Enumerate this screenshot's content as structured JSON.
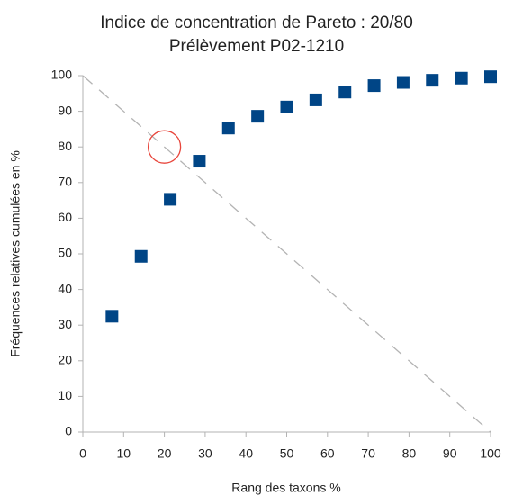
{
  "chart_data": {
    "type": "scatter",
    "title": "Indice de concentration de Pareto : 20/80",
    "subtitle": "Prélèvement P02-1210",
    "xlabel": "Rang des taxons %",
    "ylabel": "Fréquences relatives cumulées en %",
    "series": [
      {
        "color": "#004586",
        "x": [
          7.14,
          14.29,
          21.43,
          28.57,
          35.71,
          42.86,
          50,
          57.14,
          64.29,
          71.43,
          78.57,
          85.71,
          92.86,
          100
        ],
        "values": [
          32.5,
          49.3,
          65.3,
          76,
          85.3,
          88.6,
          91.2,
          93.2,
          95.4,
          97.2,
          98.1,
          98.7,
          99.3,
          99.7
        ]
      }
    ],
    "reference_line": {
      "color": "#b3b3b3",
      "x": [
        0,
        100
      ],
      "values": [
        100,
        0
      ]
    },
    "highlight": {
      "color": "#e8463c",
      "x": 20,
      "y": 80
    },
    "xlim": [
      0,
      100
    ],
    "ylim": [
      0,
      100
    ],
    "xticks": [
      0,
      10,
      20,
      30,
      40,
      50,
      60,
      70,
      80,
      90,
      100
    ],
    "yticks": [
      0,
      10,
      20,
      30,
      40,
      50,
      60,
      70,
      80,
      90,
      100
    ],
    "grid": false
  }
}
